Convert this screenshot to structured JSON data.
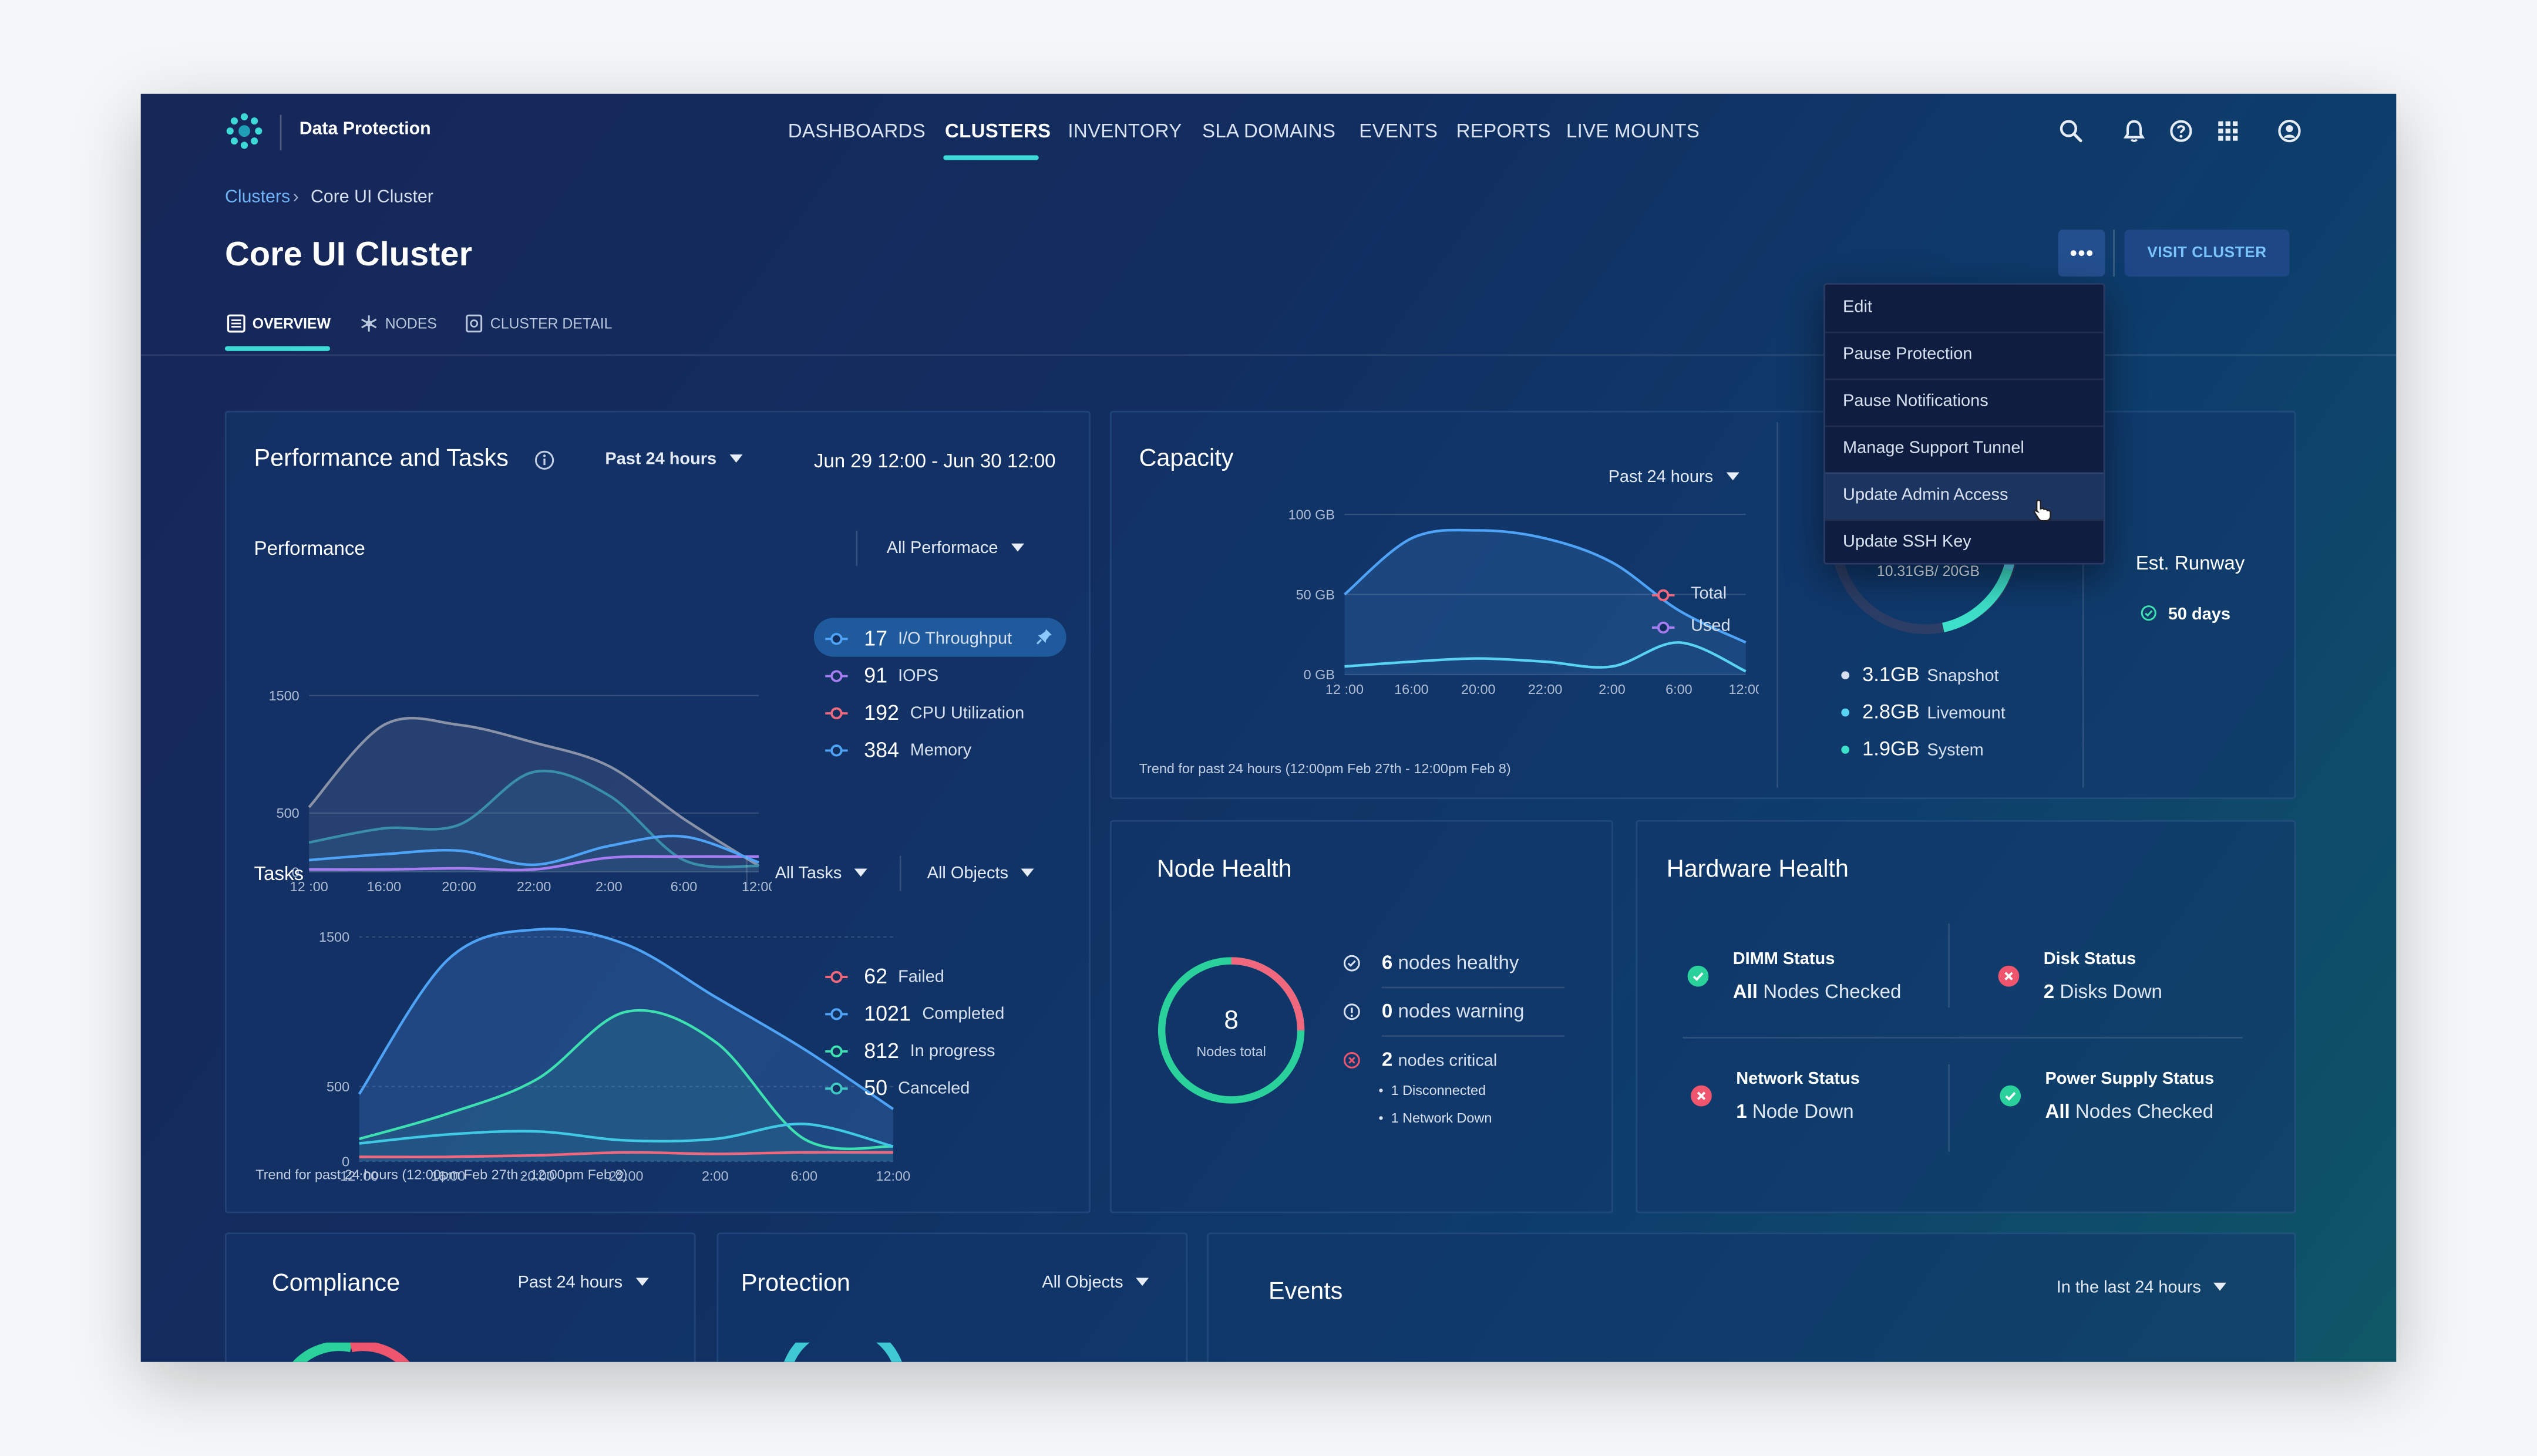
{
  "app": {
    "name": "Data Protection"
  },
  "nav": [
    "DASHBOARDS",
    "CLUSTERS",
    "INVENTORY",
    "SLA DOMAINS",
    "EVENTS",
    "REPORTS",
    "LIVE MOUNTS"
  ],
  "nav_active": "CLUSTERS",
  "header_icons": [
    "search-icon",
    "bell-icon",
    "help-icon",
    "apps-grid-icon",
    "user-icon"
  ],
  "breadcrumb": {
    "parent": "Clusters",
    "current": "Core UI Cluster"
  },
  "page": {
    "title": "Core UI Cluster",
    "tabs": [
      {
        "label": "OVERVIEW",
        "icon": "list-icon",
        "active": true
      },
      {
        "label": "NODES",
        "icon": "nodes-icon",
        "active": false
      },
      {
        "label": "CLUSTER DETAIL",
        "icon": "detail-icon",
        "active": false
      }
    ],
    "visit_button": "VISIT CLUSTER"
  },
  "menu": {
    "items": [
      "Edit",
      "Pause Protection",
      "Pause Notifications",
      "Manage Support Tunnel",
      "Update Admin Access",
      "Update SSH Key"
    ],
    "hovered": "Update Admin Access"
  },
  "performance_tasks": {
    "title": "Performance and Tasks",
    "range": "Past 24 hours",
    "date_range": "Jun 29 12:00 - Jun 30 12:00",
    "performance": {
      "title": "Performance",
      "filter": "All Performace",
      "legend": [
        {
          "value": "17",
          "label": "I/O Throughput",
          "color": "#4fa3f7",
          "pinned": true
        },
        {
          "value": "91",
          "label": "IOPS",
          "color": "#a77cf2"
        },
        {
          "value": "192",
          "label": "CPU Utilization",
          "color": "#f0677e"
        },
        {
          "value": "384",
          "label": "Memory",
          "color": "#4fa3f7"
        }
      ]
    },
    "tasks": {
      "title": "Tasks",
      "filter1": "All Tasks",
      "filter2": "All Objects",
      "legend": [
        {
          "value": "62",
          "label": "Failed",
          "color": "#f0677e"
        },
        {
          "value": "1021",
          "label": "Completed",
          "color": "#4fa3f7"
        },
        {
          "value": "812",
          "label": "In progress",
          "color": "#3de0b0"
        },
        {
          "value": "50",
          "label": "Canceled",
          "color": "#3fc9c4"
        }
      ]
    },
    "trend": "Trend for past 24 hours (12:00pm Feb 27th - 12:00pm Feb 8)"
  },
  "capacity": {
    "title": "Capacity",
    "range": "Past 24 hours",
    "legend": [
      {
        "label": "Total",
        "color": "#f0677e"
      },
      {
        "label": "Used",
        "color": "#a77cf2"
      }
    ],
    "trend": "Trend for past 24 hours (12:00pm Feb 27th - 12:00pm Feb 8)",
    "donut_label": "10.31GB/ 20GB",
    "breakdown": [
      {
        "value": "3.1GB",
        "label": "Snapshot",
        "color": "#d7def0"
      },
      {
        "value": "2.8GB",
        "label": "Livemount",
        "color": "#59d3f2"
      },
      {
        "value": "1.9GB",
        "label": "System",
        "color": "#3de0c9"
      }
    ],
    "runway": {
      "title": "Est. Runway",
      "value": "50 days"
    }
  },
  "node_health": {
    "title": "Node Health",
    "total": "8",
    "total_label": "Nodes total",
    "healthy": "6",
    "healthy_label": "nodes healthy",
    "warning": "0",
    "warning_label": "nodes warning",
    "critical": "2",
    "critical_label": "nodes critical",
    "critical_details": [
      "1 Disconnected",
      "1 Network Down"
    ]
  },
  "hardware_health": {
    "title": "Hardware Health",
    "items": [
      {
        "title": "DIMM Status",
        "strong": "All",
        "rest": "Nodes Checked",
        "status": "ok"
      },
      {
        "title": "Disk Status",
        "strong": "2",
        "rest": "Disks Down",
        "status": "bad"
      },
      {
        "title": "Network Status",
        "strong": "1",
        "rest": "Node Down",
        "status": "bad"
      },
      {
        "title": "Power Supply Status",
        "strong": "All",
        "rest": "Nodes Checked",
        "status": "ok"
      }
    ]
  },
  "compliance": {
    "title": "Compliance",
    "range": "Past 24 hours"
  },
  "protection": {
    "title": "Protection",
    "filter": "All Objects"
  },
  "events": {
    "title": "Events",
    "range": "In the last 24 hours"
  },
  "chart_data": [
    {
      "type": "area",
      "title": "Performance",
      "x": [
        "12 :00",
        "16:00",
        "20:00",
        "22:00",
        "2:00",
        "6:00",
        "12:00"
      ],
      "yticks": [
        0,
        500,
        1500
      ],
      "ylim": [
        0,
        1500
      ],
      "series": [
        {
          "name": "Memory",
          "values": [
            550,
            1250,
            1250,
            1100,
            900,
            450,
            50
          ]
        },
        {
          "name": "CPU Utilization",
          "values": [
            250,
            370,
            400,
            850,
            650,
            100,
            50
          ]
        },
        {
          "name": "IOPS",
          "values": [
            20,
            20,
            30,
            20,
            120,
            130,
            130
          ]
        },
        {
          "name": "I/O Throughput",
          "values": [
            100,
            150,
            180,
            60,
            220,
            300,
            80
          ]
        }
      ]
    },
    {
      "type": "area",
      "title": "Tasks",
      "x": [
        "12 :00",
        "16:00",
        "20:00",
        "22:00",
        "2:00",
        "6:00",
        "12:00"
      ],
      "yticks": [
        0,
        500,
        1500
      ],
      "ylim": [
        0,
        1600
      ],
      "series": [
        {
          "name": "Completed",
          "values": [
            450,
            1350,
            1550,
            1450,
            1100,
            750,
            350
          ]
        },
        {
          "name": "In progress",
          "values": [
            150,
            320,
            550,
            1000,
            800,
            150,
            100
          ]
        },
        {
          "name": "Canceled",
          "values": [
            120,
            180,
            200,
            140,
            150,
            250,
            100
          ]
        },
        {
          "name": "Failed",
          "values": [
            30,
            30,
            40,
            60,
            50,
            60,
            60
          ]
        }
      ]
    },
    {
      "type": "area",
      "title": "Capacity",
      "x": [
        "12 :00",
        "16:00",
        "20:00",
        "22:00",
        "2:00",
        "6:00",
        "12:00"
      ],
      "yticks": [
        "0 GB",
        "50 GB",
        "100 GB"
      ],
      "ylim": [
        0,
        100
      ],
      "series": [
        {
          "name": "Total",
          "values": [
            50,
            85,
            90,
            85,
            70,
            40,
            20
          ]
        },
        {
          "name": "Used",
          "values": [
            5,
            8,
            10,
            8,
            5,
            20,
            2
          ]
        }
      ]
    },
    {
      "type": "pie",
      "title": "Node Health",
      "categories": [
        "healthy",
        "critical"
      ],
      "values": [
        6,
        2
      ]
    }
  ]
}
